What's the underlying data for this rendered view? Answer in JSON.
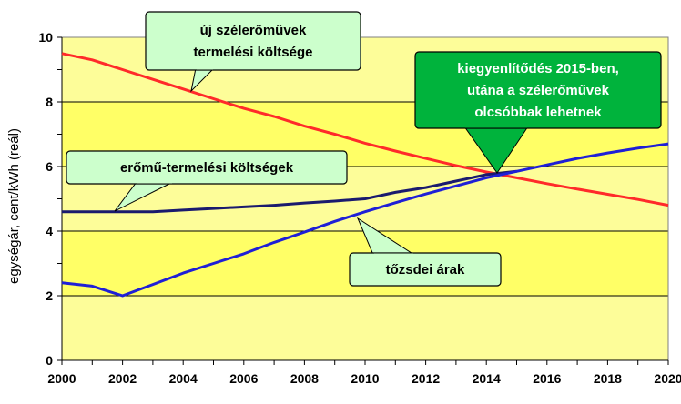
{
  "chart_data": {
    "type": "line",
    "ylabel": "egységár, cent/kWh (reál)",
    "xlabel": "",
    "xlim": [
      2000,
      2020
    ],
    "ylim": [
      0,
      10
    ],
    "x_ticks": [
      "2000",
      "2002",
      "2004",
      "2006",
      "2008",
      "2010",
      "2012",
      "2014",
      "2016",
      "2018",
      "2020"
    ],
    "y_ticks": [
      "0",
      "2",
      "4",
      "6",
      "8",
      "10"
    ],
    "grid": true,
    "series": [
      {
        "name": "új szélerőművek termelési költsége",
        "color": "#ff2a2a",
        "points": [
          [
            2000,
            9.5
          ],
          [
            2001,
            9.3
          ],
          [
            2002,
            9.0
          ],
          [
            2003,
            8.7
          ],
          [
            2004,
            8.4
          ],
          [
            2005,
            8.1
          ],
          [
            2006,
            7.8
          ],
          [
            2007,
            7.55
          ],
          [
            2008,
            7.25
          ],
          [
            2009,
            7.0
          ],
          [
            2010,
            6.72
          ],
          [
            2011,
            6.48
          ],
          [
            2012,
            6.25
          ],
          [
            2013,
            6.03
          ],
          [
            2014,
            5.83
          ],
          [
            2015,
            5.65
          ],
          [
            2016,
            5.47
          ],
          [
            2017,
            5.3
          ],
          [
            2018,
            5.14
          ],
          [
            2019,
            4.98
          ],
          [
            2020,
            4.8
          ]
        ]
      },
      {
        "name": "erőmű-termelési költségek",
        "color": "#1a1a6e",
        "points": [
          [
            2000,
            4.6
          ],
          [
            2001,
            4.6
          ],
          [
            2002,
            4.6
          ],
          [
            2003,
            4.6
          ],
          [
            2004,
            4.65
          ],
          [
            2005,
            4.7
          ],
          [
            2006,
            4.75
          ],
          [
            2007,
            4.8
          ],
          [
            2008,
            4.87
          ],
          [
            2009,
            4.93
          ],
          [
            2010,
            5.0
          ],
          [
            2011,
            5.2
          ],
          [
            2012,
            5.35
          ],
          [
            2013,
            5.55
          ],
          [
            2014,
            5.75
          ],
          [
            2015,
            5.85
          ]
        ]
      },
      {
        "name": "tőzsdei árak",
        "color": "#1f1fd6",
        "points": [
          [
            2000,
            2.4
          ],
          [
            2001,
            2.3
          ],
          [
            2002,
            2.0
          ],
          [
            2003,
            2.35
          ],
          [
            2004,
            2.7
          ],
          [
            2005,
            3.0
          ],
          [
            2006,
            3.3
          ],
          [
            2007,
            3.65
          ],
          [
            2008,
            3.97
          ],
          [
            2009,
            4.3
          ],
          [
            2010,
            4.6
          ],
          [
            2011,
            4.88
          ],
          [
            2012,
            5.15
          ],
          [
            2013,
            5.4
          ],
          [
            2014,
            5.65
          ],
          [
            2015,
            5.85
          ],
          [
            2016,
            6.05
          ],
          [
            2017,
            6.25
          ],
          [
            2018,
            6.42
          ],
          [
            2019,
            6.57
          ],
          [
            2020,
            6.7
          ]
        ]
      }
    ],
    "annotations": [
      {
        "id": "wind",
        "lines": [
          "új szélerőművek",
          "termelési költsége"
        ],
        "fill": "#ccffcc",
        "text_color": "#000000"
      },
      {
        "id": "plant",
        "lines": [
          "erőmű-termelési költségek"
        ],
        "fill": "#ccffcc",
        "text_color": "#000000"
      },
      {
        "id": "market",
        "lines": [
          "tőzsdei árak"
        ],
        "fill": "#ccffcc",
        "text_color": "#000000"
      },
      {
        "id": "parity",
        "lines": [
          "kiegyenlítődés 2015-ben,",
          "utána a szélerőművek",
          "olcsóbbak lehetnek"
        ],
        "fill": "#00b33c",
        "text_color": "#ffffff"
      }
    ],
    "band_colors": [
      "#fdfd99",
      "#ffff66"
    ]
  }
}
